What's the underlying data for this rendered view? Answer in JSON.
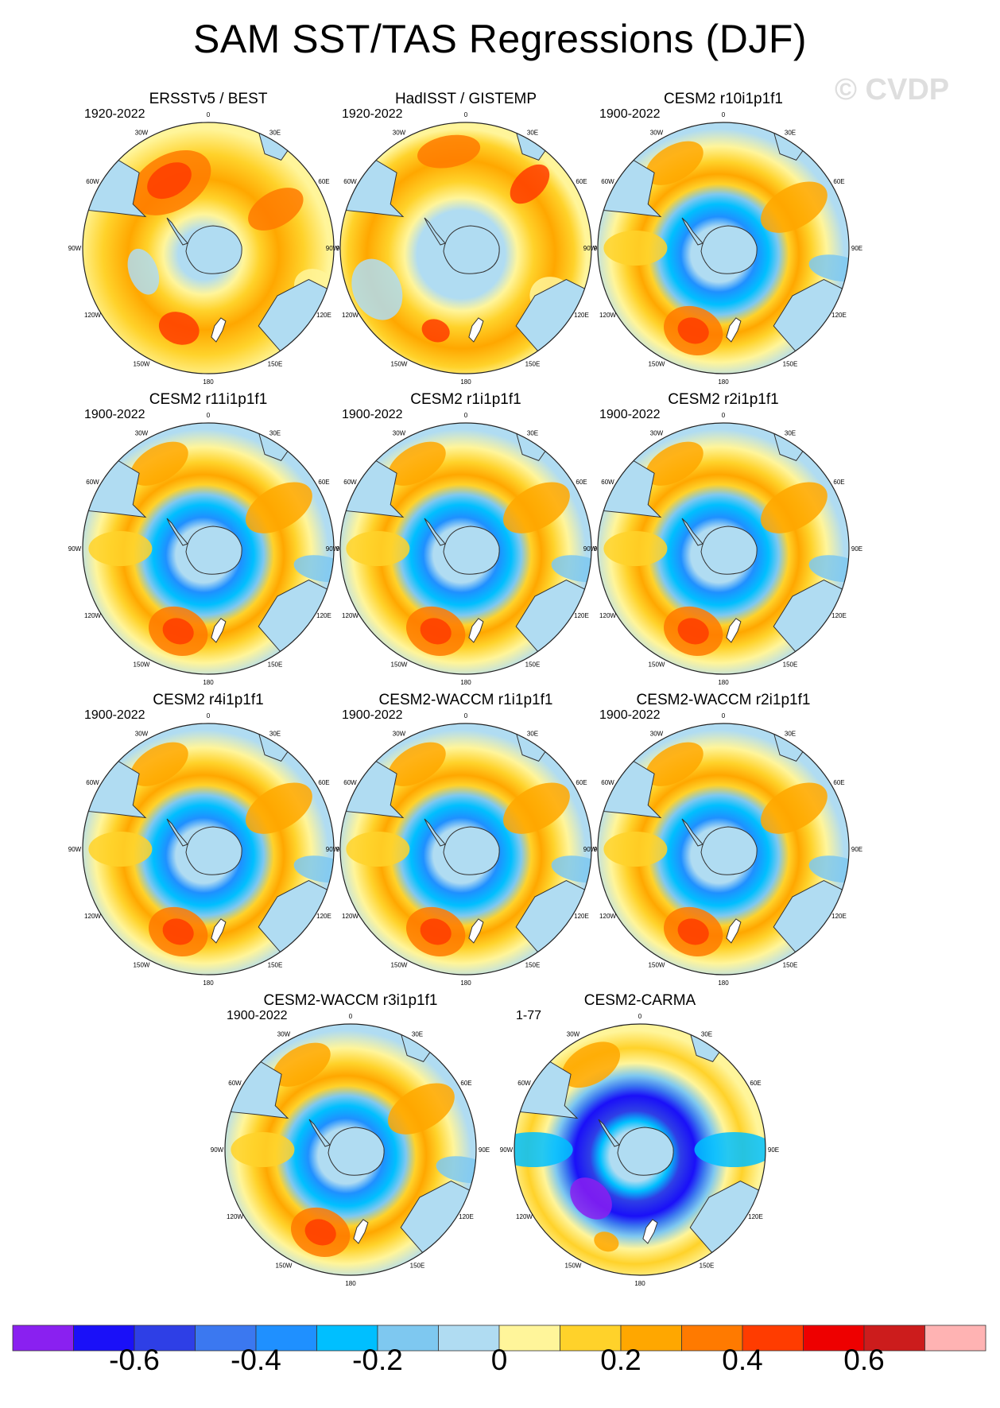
{
  "title": "SAM SST/TAS Regressions (DJF)",
  "watermark": "© CVDP",
  "longitude_labels": [
    "0",
    "30E",
    "60E",
    "90E",
    "120E",
    "150E",
    "180",
    "150W",
    "120W",
    "90W",
    "60W",
    "30W"
  ],
  "colors": {
    "ocean_pale": "#b0dcf2",
    "land": "#b0dcf2",
    "coast": "#333333"
  },
  "panels": [
    {
      "title": "ERSSTv5 / BEST",
      "period": "1920-2022",
      "style": "obs1"
    },
    {
      "title": "HadISST / GISTEMP",
      "period": "1920-2022",
      "style": "obs2"
    },
    {
      "title": "CESM2 r10i1p1f1",
      "period": "1900-2022",
      "style": "model"
    },
    {
      "title": "CESM2 r11i1p1f1",
      "period": "1900-2022",
      "style": "model"
    },
    {
      "title": "CESM2 r1i1p1f1",
      "period": "1900-2022",
      "style": "model"
    },
    {
      "title": "CESM2 r2i1p1f1",
      "period": "1900-2022",
      "style": "model"
    },
    {
      "title": "CESM2 r4i1p1f1",
      "period": "1900-2022",
      "style": "model"
    },
    {
      "title": "CESM2-WACCM r1i1p1f1",
      "period": "1900-2022",
      "style": "model"
    },
    {
      "title": "CESM2-WACCM r2i1p1f1",
      "period": "1900-2022",
      "style": "model"
    },
    {
      "title": "CESM2-WACCM r3i1p1f1",
      "period": "1900-2022",
      "style": "model"
    },
    {
      "title": "CESM2-CARMA",
      "period": "1-77",
      "style": "carma"
    }
  ],
  "colorbar": {
    "colors": [
      "#8a20f0",
      "#1a10f8",
      "#2e3fe6",
      "#3b78f0",
      "#1f90ff",
      "#00bfff",
      "#7ec8f0",
      "#b0dcf2",
      "#fff59a",
      "#ffd22a",
      "#ffa700",
      "#ff7a00",
      "#ff3c00",
      "#ee0000",
      "#cc1c1c",
      "#ffb3b3"
    ],
    "labels": [
      "-0.6",
      "-0.4",
      "-0.2",
      "0",
      "0.2",
      "0.4",
      "0.6"
    ]
  }
}
